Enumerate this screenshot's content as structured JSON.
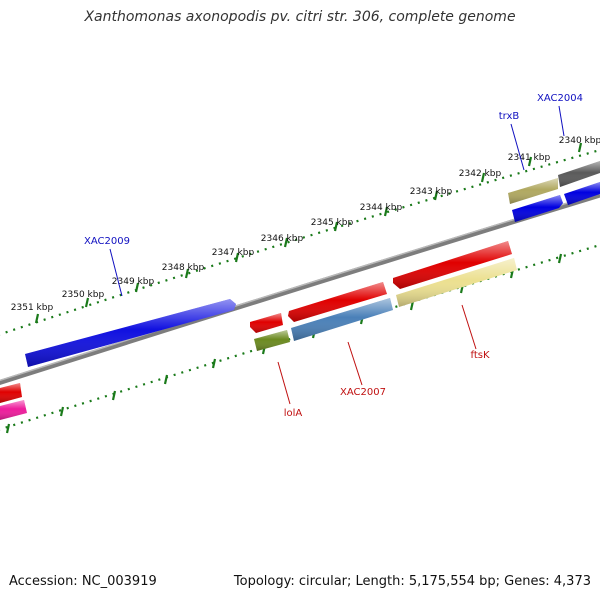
{
  "title": "Xanthomonas axonopodis pv. citri str. 306, complete genome",
  "footer": {
    "accession": "Accession: NC_003919",
    "summary": "Topology: circular; Length: 5,175,554 bp; Genes: 4,373"
  },
  "colors": {
    "backbone": "#7d7d7d",
    "ticks": "#1a7a1a",
    "forward_label": "#1010c0",
    "reverse_label": "#c01010"
  },
  "ticks": [
    {
      "label": "2340 kbp"
    },
    {
      "label": "2341 kbp"
    },
    {
      "label": "2342 kbp"
    },
    {
      "label": "2343 kbp"
    },
    {
      "label": "2344 kbp"
    },
    {
      "label": "2345 kbp"
    },
    {
      "label": "2346 kbp"
    },
    {
      "label": "2347 kbp"
    },
    {
      "label": "2348 kbp"
    },
    {
      "label": "2349 kbp"
    },
    {
      "label": "2350 kbp"
    },
    {
      "label": "2351 kbp"
    }
  ],
  "gene_labels": [
    {
      "text": "XAC2004",
      "strand": "forward"
    },
    {
      "text": "trxB",
      "strand": "forward"
    },
    {
      "text": "XAC2009",
      "strand": "forward"
    },
    {
      "text": "lolA",
      "strand": "reverse"
    },
    {
      "text": "XAC2007",
      "strand": "reverse"
    },
    {
      "text": "ftsK",
      "strand": "reverse"
    }
  ],
  "features": [
    {
      "name": "dark-gray-gene",
      "color": "#5a5a5a"
    },
    {
      "name": "blue-gene-top-right",
      "color": "#0000e0"
    },
    {
      "name": "olive-gene-trxb",
      "color": "#b0a860"
    },
    {
      "name": "blue-gene-trxb",
      "color": "#0000e0"
    },
    {
      "name": "blue-gene-xac2009",
      "color": "#1010e0"
    },
    {
      "name": "red-gene-lola",
      "color": "#e00000"
    },
    {
      "name": "green-gene-lola",
      "color": "#6b8a20"
    },
    {
      "name": "red-gene-xac2007",
      "color": "#e00000"
    },
    {
      "name": "steelblue-gene-xac2007",
      "color": "#4a80b8"
    },
    {
      "name": "red-gene-ftsk",
      "color": "#e00000"
    },
    {
      "name": "khaki-gene-ftsk",
      "color": "#ece090"
    },
    {
      "name": "red-gene-left-edge",
      "color": "#e00000"
    },
    {
      "name": "pink-gene-left-edge",
      "color": "#ee1c9c"
    }
  ]
}
